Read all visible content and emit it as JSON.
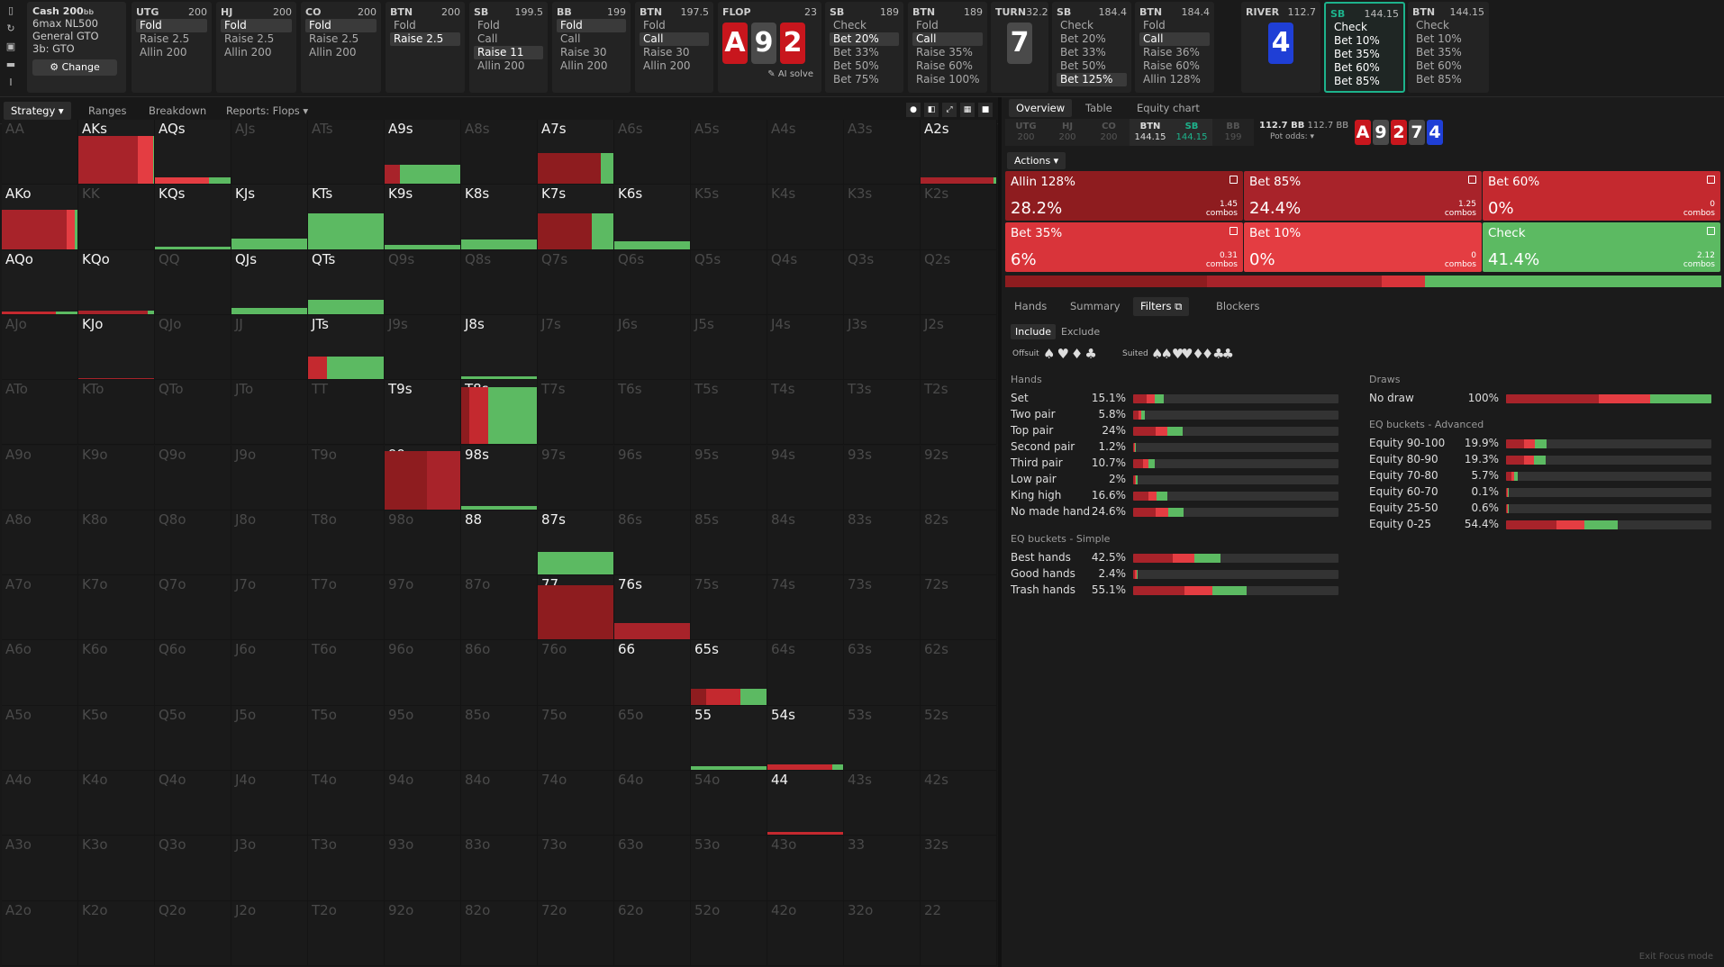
{
  "game": {
    "title": "Cash",
    "stack": "200",
    "stack_unit": "bb",
    "items": [
      "6max NL500",
      "General GTO",
      "3b: GTO"
    ],
    "change_label": "Change"
  },
  "columns": [
    {
      "pos": "UTG",
      "stack": "200",
      "actions": [
        "Fold",
        "Raise 2.5",
        "Allin 200"
      ],
      "sel": 0
    },
    {
      "pos": "HJ",
      "stack": "200",
      "actions": [
        "Fold",
        "Raise 2.5",
        "Allin 200"
      ],
      "sel": 0
    },
    {
      "pos": "CO",
      "stack": "200",
      "actions": [
        "Fold",
        "Raise 2.5",
        "Allin 200"
      ],
      "sel": 0
    },
    {
      "pos": "BTN",
      "stack": "200",
      "actions": [
        "Fold",
        "Raise 2.5"
      ],
      "sel": 1
    },
    {
      "pos": "SB",
      "stack": "199.5",
      "actions": [
        "Fold",
        "Call",
        "Raise 11",
        "Allin 200"
      ],
      "sel": 2
    },
    {
      "pos": "BB",
      "stack": "199",
      "actions": [
        "Fold",
        "Call",
        "Raise 30",
        "Allin 200"
      ],
      "sel": 0
    },
    {
      "pos": "BTN",
      "stack": "197.5",
      "actions": [
        "Fold",
        "Call",
        "Raise 30",
        "Allin 200"
      ],
      "sel": 1
    },
    {
      "street": "FLOP",
      "pot": "23",
      "cards": [
        "A",
        "9",
        "2"
      ],
      "ai_label": "AI solve"
    },
    {
      "pos": "SB",
      "stack": "189",
      "actions": [
        "Check",
        "Bet 20%",
        "Bet 33%",
        "Bet 50%",
        "Bet 75%"
      ],
      "sel": 1
    },
    {
      "pos": "BTN",
      "stack": "189",
      "actions": [
        "Fold",
        "Call",
        "Raise 35%",
        "Raise 60%",
        "Raise 100%"
      ],
      "sel": 1
    },
    {
      "street": "TURN",
      "pot": "32.2",
      "cards": [
        "7"
      ]
    },
    {
      "pos": "SB",
      "stack": "184.4",
      "actions": [
        "Check",
        "Bet 20%",
        "Bet 33%",
        "Bet 50%",
        "Bet 125%"
      ],
      "sel": 4
    },
    {
      "pos": "BTN",
      "stack": "184.4",
      "actions": [
        "Fold",
        "Call",
        "Raise 36%",
        "Raise 60%",
        "Allin 128%"
      ],
      "sel": 1
    },
    {
      "street": "RIVER",
      "pot": "112.7",
      "cards": [
        "4"
      ]
    },
    {
      "pos": "SB",
      "stack": "144.15",
      "actions": [
        "Check",
        "Bet 10%",
        "Bet 35%",
        "Bet 60%",
        "Bet 85%"
      ],
      "sel": -1,
      "active": true
    },
    {
      "pos": "BTN",
      "stack": "144.15",
      "actions": [
        "Check",
        "Bet 10%",
        "Bet 35%",
        "Bet 60%",
        "Bet 85%"
      ],
      "sel": -1
    }
  ],
  "left_tabs": [
    "Strategy",
    "Ranges",
    "Breakdown",
    "Reports: Flops"
  ],
  "grid": [
    [
      "AA",
      "AKs",
      "AQs",
      "AJs",
      "ATs",
      "A9s",
      "A8s",
      "A7s",
      "A6s",
      "A5s",
      "A4s",
      "A3s",
      "A2s"
    ],
    [
      "AKo",
      "KK",
      "KQs",
      "KJs",
      "KTs",
      "K9s",
      "K8s",
      "K7s",
      "K6s",
      "K5s",
      "K4s",
      "K3s",
      "K2s"
    ],
    [
      "AQo",
      "KQo",
      "QQ",
      "QJs",
      "QTs",
      "Q9s",
      "Q8s",
      "Q7s",
      "Q6s",
      "Q5s",
      "Q4s",
      "Q3s",
      "Q2s"
    ],
    [
      "AJo",
      "KJo",
      "QJo",
      "JJ",
      "JTs",
      "J9s",
      "J8s",
      "J7s",
      "J6s",
      "J5s",
      "J4s",
      "J3s",
      "J2s"
    ],
    [
      "ATo",
      "KTo",
      "QTo",
      "JTo",
      "TT",
      "T9s",
      "T8s",
      "T7s",
      "T6s",
      "T5s",
      "T4s",
      "T3s",
      "T2s"
    ],
    [
      "A9o",
      "K9o",
      "Q9o",
      "J9o",
      "T9o",
      "99",
      "98s",
      "97s",
      "96s",
      "95s",
      "94s",
      "93s",
      "92s"
    ],
    [
      "A8o",
      "K8o",
      "Q8o",
      "J8o",
      "T8o",
      "98o",
      "88",
      "87s",
      "86s",
      "85s",
      "84s",
      "83s",
      "82s"
    ],
    [
      "A7o",
      "K7o",
      "Q7o",
      "J7o",
      "T7o",
      "97o",
      "87o",
      "77",
      "76s",
      "75s",
      "74s",
      "73s",
      "72s"
    ],
    [
      "A6o",
      "K6o",
      "Q6o",
      "J6o",
      "T6o",
      "96o",
      "86o",
      "76o",
      "66",
      "65s",
      "64s",
      "63s",
      "62s"
    ],
    [
      "A5o",
      "K5o",
      "Q5o",
      "J5o",
      "T5o",
      "95o",
      "85o",
      "75o",
      "65o",
      "55",
      "54s",
      "53s",
      "52s"
    ],
    [
      "A4o",
      "K4o",
      "Q4o",
      "J4o",
      "T4o",
      "94o",
      "84o",
      "74o",
      "64o",
      "54o",
      "44",
      "43s",
      "42s"
    ],
    [
      "A3o",
      "K3o",
      "Q3o",
      "J3o",
      "T3o",
      "93o",
      "83o",
      "73o",
      "63o",
      "53o",
      "43o",
      "33",
      "32s"
    ],
    [
      "A2o",
      "K2o",
      "Q2o",
      "J2o",
      "T2o",
      "92o",
      "82o",
      "72o",
      "62o",
      "52o",
      "42o",
      "32o",
      "22"
    ]
  ],
  "active_hands": [
    "AKs",
    "AQs",
    "A9s",
    "A7s",
    "A2s",
    "AKo",
    "KQs",
    "KJs",
    "KTs",
    "K9s",
    "K8s",
    "K7s",
    "K6s",
    "AQo",
    "KQo",
    "QJs",
    "QTs",
    "KJo",
    "JTs",
    "J8s",
    "T9s",
    "T8s",
    "99",
    "98s",
    "88",
    "87s",
    "77",
    "76s",
    "66",
    "65s",
    "55",
    "54s",
    "44"
  ],
  "right_tabs": [
    "Overview",
    "Table",
    "Equity chart"
  ],
  "positions": [
    {
      "n": "UTG",
      "s": "200"
    },
    {
      "n": "HJ",
      "s": "200"
    },
    {
      "n": "CO",
      "s": "200"
    },
    {
      "n": "BTN",
      "s": "144.15"
    },
    {
      "n": "SB",
      "s": "144.15"
    },
    {
      "n": "BB",
      "s": "199"
    }
  ],
  "pot": {
    "pot": "112.7 BB",
    "pot2": "112.7 BB",
    "odds": "Pot odds:"
  },
  "board": [
    "A",
    "9",
    "2",
    "7",
    "4"
  ],
  "actions_label": "Actions",
  "actions": [
    {
      "name": "Allin 128%",
      "pct": "28.2%",
      "combos": "1.45",
      "color": "#8e1c1f"
    },
    {
      "name": "Bet 85%",
      "pct": "24.4%",
      "combos": "1.25",
      "color": "#a8232a"
    },
    {
      "name": "Bet 60%",
      "pct": "0%",
      "combos": "0",
      "color": "#c4292f"
    },
    {
      "name": "Bet 35%",
      "pct": "6%",
      "combos": "0.31",
      "color": "#d9343a"
    },
    {
      "name": "Bet 10%",
      "pct": "0%",
      "combos": "0",
      "color": "#e43d42"
    },
    {
      "name": "Check",
      "pct": "41.4%",
      "combos": "2.12",
      "color": "#5cba62"
    }
  ],
  "combos_word": "combos",
  "sub_tabs": [
    "Hands",
    "Summary",
    "Filters",
    "Blockers"
  ],
  "filter": {
    "include": "Include",
    "exclude": "Exclude",
    "offsuit": "Offsuit",
    "suited": "Suited"
  },
  "hands_head": "Hands",
  "hands": [
    {
      "n": "Set",
      "p": "15.1%",
      "v": 0.151
    },
    {
      "n": "Two pair",
      "p": "5.8%",
      "v": 0.058
    },
    {
      "n": "Top pair",
      "p": "24%",
      "v": 0.24
    },
    {
      "n": "Second pair",
      "p": "1.2%",
      "v": 0.012
    },
    {
      "n": "Third pair",
      "p": "10.7%",
      "v": 0.107
    },
    {
      "n": "Low pair",
      "p": "2%",
      "v": 0.02
    },
    {
      "n": "King high",
      "p": "16.6%",
      "v": 0.166
    },
    {
      "n": "No made hand",
      "p": "24.6%",
      "v": 0.246
    }
  ],
  "eq_simple_head": "EQ buckets - Simple",
  "eq_simple": [
    {
      "n": "Best hands",
      "p": "42.5%",
      "v": 0.425
    },
    {
      "n": "Good hands",
      "p": "2.4%",
      "v": 0.024
    },
    {
      "n": "Trash hands",
      "p": "55.1%",
      "v": 0.551
    }
  ],
  "draws_head": "Draws",
  "draws": [
    {
      "n": "No draw",
      "p": "100%",
      "v": 1.0
    }
  ],
  "eq_adv_head": "EQ buckets - Advanced",
  "eq_adv": [
    {
      "n": "Equity 90-100",
      "p": "19.9%",
      "v": 0.199
    },
    {
      "n": "Equity 80-90",
      "p": "19.3%",
      "v": 0.193
    },
    {
      "n": "Equity 70-80",
      "p": "5.7%",
      "v": 0.057
    },
    {
      "n": "Equity 60-70",
      "p": "0.1%",
      "v": 0.001
    },
    {
      "n": "Equity 25-50",
      "p": "0.6%",
      "v": 0.006
    },
    {
      "n": "Equity 0-25",
      "p": "54.4%",
      "v": 0.544
    }
  ],
  "exit_label": "Exit Focus mode"
}
